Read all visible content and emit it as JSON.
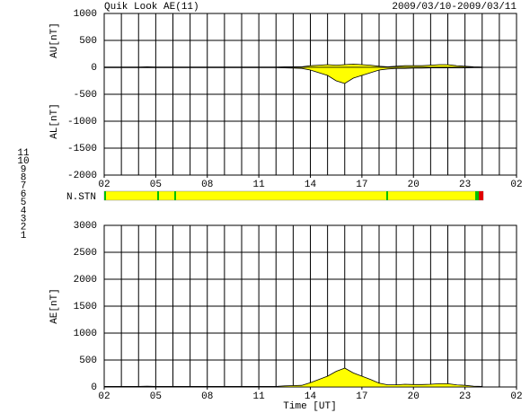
{
  "chart_data": [
    {
      "type": "area",
      "title": "Quik Look AE(11)",
      "subtitle": "2009/03/10-2009/03/11",
      "x": [
        2,
        2.5,
        3,
        3.5,
        4,
        4.5,
        5,
        5.5,
        6,
        6.5,
        7,
        7.5,
        8,
        8.5,
        9,
        9.5,
        10,
        10.5,
        11,
        11.5,
        12,
        12.5,
        13,
        13.5,
        14,
        14.5,
        15,
        15.5,
        16,
        16.5,
        17,
        17.5,
        18,
        18.5,
        19,
        19.5,
        20,
        20.5,
        21,
        21.5,
        22,
        22.5,
        23,
        23.5,
        24
      ],
      "series": [
        {
          "name": "AU[nT]",
          "color": "#ffff00",
          "values": [
            5,
            5,
            5,
            5,
            5,
            10,
            5,
            5,
            5,
            5,
            5,
            5,
            5,
            5,
            5,
            5,
            5,
            5,
            5,
            5,
            5,
            10,
            10,
            10,
            30,
            40,
            50,
            40,
            50,
            60,
            50,
            40,
            20,
            10,
            20,
            30,
            30,
            30,
            40,
            50,
            50,
            30,
            20,
            10,
            5
          ]
        },
        {
          "name": "AL[nT]",
          "color": "#ffff00",
          "values": [
            -5,
            -5,
            -5,
            -5,
            -5,
            -5,
            -5,
            -5,
            -5,
            -5,
            -5,
            -5,
            -5,
            -5,
            -5,
            -5,
            -5,
            -5,
            -5,
            -5,
            -5,
            -10,
            -15,
            -20,
            -50,
            -100,
            -150,
            -250,
            -300,
            -200,
            -150,
            -100,
            -50,
            -30,
            -20,
            -20,
            -15,
            -15,
            -10,
            -10,
            -10,
            -10,
            -10,
            -5,
            -5
          ]
        }
      ],
      "xlim": [
        2,
        26
      ],
      "xticks": [
        {
          "value": 2,
          "label": "02"
        },
        {
          "value": 5,
          "label": "05"
        },
        {
          "value": 8,
          "label": "08"
        },
        11,
        14,
        17,
        20,
        23,
        {
          "value": 26,
          "label": "02"
        }
      ],
      "xgrid": [
        3,
        4,
        5,
        6,
        7,
        8,
        9,
        10,
        11,
        12,
        13,
        14,
        15,
        16,
        17,
        18,
        19,
        20,
        21,
        22,
        23,
        24,
        25
      ],
      "ylim": [
        -2000,
        1000
      ],
      "yticks": [
        1000,
        500,
        0,
        -500,
        -1000,
        -1500,
        -2000
      ],
      "grid": true
    },
    {
      "type": "area",
      "xlabel": "Time [UT]",
      "ylabel": "AE[nT]",
      "x": [
        2,
        2.5,
        3,
        3.5,
        4,
        4.5,
        5,
        5.5,
        6,
        6.5,
        7,
        7.5,
        8,
        8.5,
        9,
        9.5,
        10,
        10.5,
        11,
        11.5,
        12,
        12.5,
        13,
        13.5,
        14,
        14.5,
        15,
        15.5,
        16,
        16.5,
        17,
        17.5,
        18,
        18.5,
        19,
        19.5,
        20,
        20.5,
        21,
        21.5,
        22,
        22.5,
        23,
        23.5,
        24
      ],
      "series": [
        {
          "color": "#ffff00",
          "values": [
            10,
            10,
            10,
            10,
            10,
            15,
            10,
            10,
            10,
            10,
            10,
            10,
            10,
            10,
            10,
            10,
            10,
            10,
            10,
            10,
            10,
            20,
            25,
            30,
            80,
            140,
            200,
            290,
            350,
            260,
            200,
            140,
            70,
            40,
            40,
            50,
            45,
            45,
            50,
            60,
            60,
            40,
            30,
            15,
            10
          ]
        }
      ],
      "xlim": [
        2,
        26
      ],
      "xticks": [
        {
          "value": 2,
          "label": "02"
        },
        {
          "value": 5,
          "label": "05"
        },
        {
          "value": 8,
          "label": "08"
        },
        11,
        14,
        17,
        20,
        23,
        {
          "value": 26,
          "label": "02"
        }
      ],
      "xgrid": [
        3,
        4,
        5,
        6,
        7,
        8,
        9,
        10,
        11,
        12,
        13,
        14,
        15,
        16,
        17,
        18,
        19,
        20,
        21,
        22,
        23,
        24,
        25
      ],
      "ylim": [
        0,
        3000
      ],
      "yticks": [
        3000,
        2500,
        2000,
        1500,
        1000,
        500,
        0
      ],
      "grid": true
    }
  ],
  "station_bar": {
    "label": "N.STN",
    "levels": [
      {
        "label": "11",
        "color": "#00e0e0"
      },
      {
        "label": "10",
        "color": "#e000e0"
      },
      {
        "label": "9",
        "color": "#4000c0"
      },
      {
        "label": "8",
        "color": "#f0f060"
      },
      {
        "label": "7",
        "color": "#00c000"
      },
      {
        "label": "6",
        "color": "#e00000"
      },
      {
        "label": "5",
        "color": "#e0e0e0"
      },
      {
        "label": "4",
        "color": "#a0a0a0"
      },
      {
        "label": "3",
        "color": "#008080"
      },
      {
        "label": "2",
        "color": "#8000a0"
      },
      {
        "label": "1",
        "color": "#0000e0"
      }
    ]
  }
}
